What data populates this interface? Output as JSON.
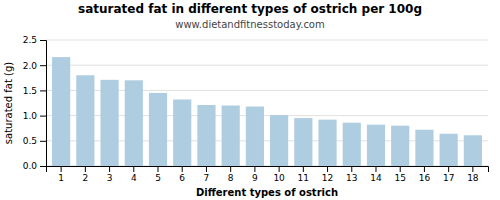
{
  "chart_data": {
    "type": "bar",
    "title": "saturated fat in different types of ostrich per 100g",
    "subtitle": "www.dietandfitnesstoday.com",
    "xlabel": "Different types of ostrich",
    "ylabel": "saturated fat (g)",
    "categories": [
      1,
      2,
      3,
      4,
      5,
      6,
      7,
      8,
      9,
      10,
      11,
      12,
      13,
      14,
      15,
      16,
      17,
      18
    ],
    "values": [
      2.16,
      1.8,
      1.71,
      1.7,
      1.45,
      1.32,
      1.21,
      1.2,
      1.18,
      1.01,
      0.95,
      0.92,
      0.86,
      0.82,
      0.8,
      0.72,
      0.64,
      0.61
    ],
    "color": "#aecde0",
    "ylim": [
      0,
      2.5
    ],
    "yticks": [
      {
        "value": 0,
        "label": "0.0"
      },
      0.5,
      {
        "value": 1,
        "label": "1.0"
      },
      1.5,
      {
        "value": 2,
        "label": "2.0"
      },
      2.5
    ],
    "grid": true
  }
}
